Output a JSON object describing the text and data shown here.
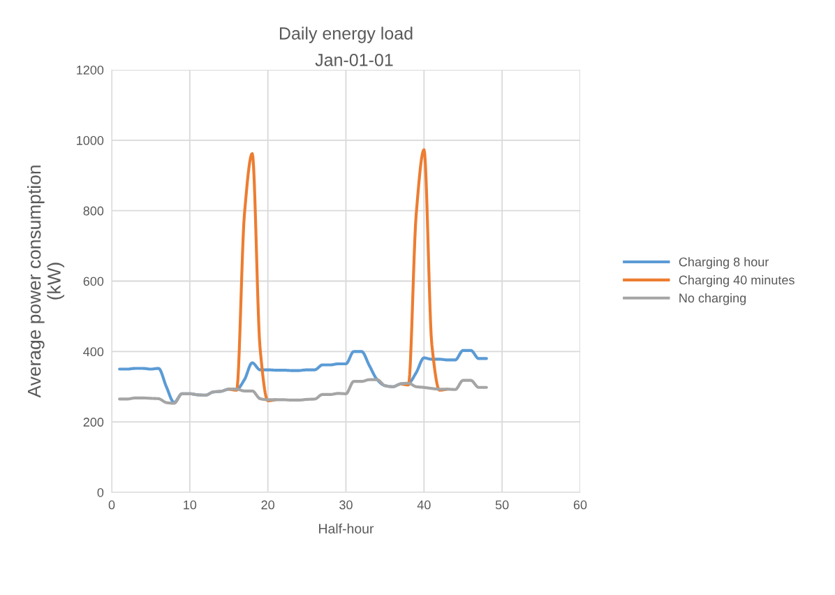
{
  "chart_data": {
    "type": "line",
    "title": "Daily energy load",
    "subtitle": "Jan-01-01",
    "xlabel": "Half-hour",
    "ylabel": "Average power consumption\n(kW)",
    "x": [
      1,
      2,
      3,
      4,
      5,
      6,
      7,
      8,
      9,
      10,
      11,
      12,
      13,
      14,
      15,
      16,
      17,
      18,
      19,
      20,
      21,
      22,
      23,
      24,
      25,
      26,
      27,
      28,
      29,
      30,
      31,
      32,
      33,
      34,
      35,
      36,
      37,
      38,
      39,
      40,
      41,
      42,
      43,
      44,
      45,
      46,
      47,
      48
    ],
    "series": [
      {
        "name": "Charging 8 hour",
        "color": "#5b9bd5",
        "values": [
          350,
          350,
          352,
          352,
          350,
          352,
          300,
          255,
          280,
          280,
          277,
          276,
          285,
          287,
          293,
          293,
          320,
          368,
          348,
          348,
          347,
          347,
          346,
          346,
          348,
          348,
          362,
          362,
          365,
          365,
          400,
          400,
          360,
          320,
          303,
          300,
          308,
          310,
          340,
          382,
          378,
          378,
          376,
          376,
          403,
          403,
          380,
          380
        ]
      },
      {
        "name": "Charging 40 minutes",
        "color": "#ed7d31",
        "values": [
          null,
          null,
          null,
          null,
          null,
          null,
          null,
          null,
          null,
          null,
          null,
          null,
          null,
          null,
          293,
          290,
          790,
          962,
          410,
          260,
          263,
          null,
          null,
          null,
          null,
          null,
          null,
          null,
          null,
          null,
          null,
          null,
          null,
          null,
          null,
          null,
          308,
          305,
          790,
          973,
          420,
          290,
          293,
          null,
          null,
          null,
          null,
          null
        ]
      },
      {
        "name": "No charging",
        "color": "#a5a5a5",
        "values": [
          265,
          265,
          268,
          268,
          267,
          266,
          255,
          253,
          280,
          280,
          277,
          276,
          285,
          287,
          293,
          293,
          288,
          288,
          266,
          263,
          263,
          263,
          262,
          262,
          264,
          265,
          278,
          278,
          281,
          280,
          315,
          315,
          320,
          320,
          303,
          300,
          308,
          310,
          300,
          298,
          295,
          293,
          293,
          292,
          318,
          318,
          298,
          298
        ]
      }
    ],
    "xlim": [
      0,
      60
    ],
    "xticks": [
      0,
      10,
      20,
      30,
      40,
      50,
      60
    ],
    "ylim": [
      0,
      1200
    ],
    "yticks": [
      0,
      200,
      400,
      600,
      800,
      1000,
      1200
    ],
    "grid": true,
    "legend": "right",
    "marker": "none",
    "line_style": "solid"
  }
}
